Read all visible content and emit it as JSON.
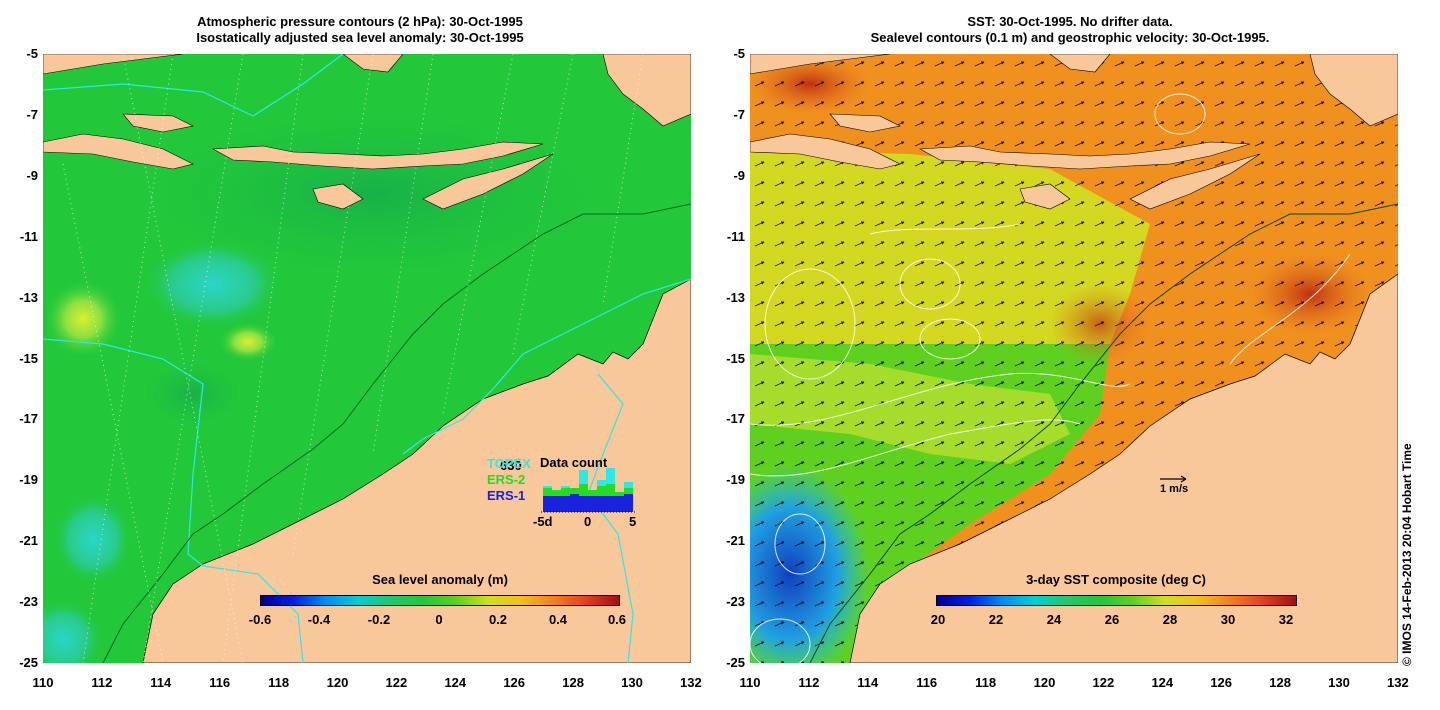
{
  "left_panel": {
    "title_line1": "Atmospheric pressure contours (2 hPa): 30-Oct-1995",
    "title_line2": "Isostatically adjusted sea level anomaly: 30-Oct-1995",
    "colorbar": {
      "title": "Sea level anomaly (m)",
      "ticks": [
        "-0.6",
        "-0.4",
        "-0.2",
        "0",
        "0.2",
        "0.4",
        "0.6"
      ]
    },
    "data_count": {
      "title": "Data count",
      "count": "630",
      "series_labels": [
        "TOPEX",
        "ERS-2",
        "ERS-1"
      ],
      "x_ticks": [
        "-5d",
        "0",
        "5"
      ]
    }
  },
  "right_panel": {
    "title_line1": "SST: 30-Oct-1995. No drifter data.",
    "title_line2": "Sealevel contours (0.1 m) and geostrophic velocity: 30-Oct-1995.",
    "colorbar": {
      "title": "3-day SST composite (deg C)",
      "ticks": [
        "20",
        "22",
        "24",
        "26",
        "28",
        "30",
        "32"
      ]
    },
    "velocity_scale": "1 m/s"
  },
  "axes": {
    "y_ticks": [
      "-5",
      "-7",
      "-9",
      "-11",
      "-13",
      "-15",
      "-17",
      "-19",
      "-21",
      "-23",
      "-25"
    ],
    "x_ticks": [
      "110",
      "112",
      "114",
      "116",
      "118",
      "120",
      "122",
      "124",
      "126",
      "128",
      "130",
      "132"
    ]
  },
  "colors": {
    "land": "#f8c79a",
    "ocean_green": "#22c83a",
    "sst_orange": "#f08c1e",
    "accent_cyan": "#2ee8e8",
    "ers2_green": "#22dd22",
    "ers1_blue": "#1a22dd"
  },
  "copyright": "© IMOS 14-Feb-2013 20:04 Hobart Time"
}
